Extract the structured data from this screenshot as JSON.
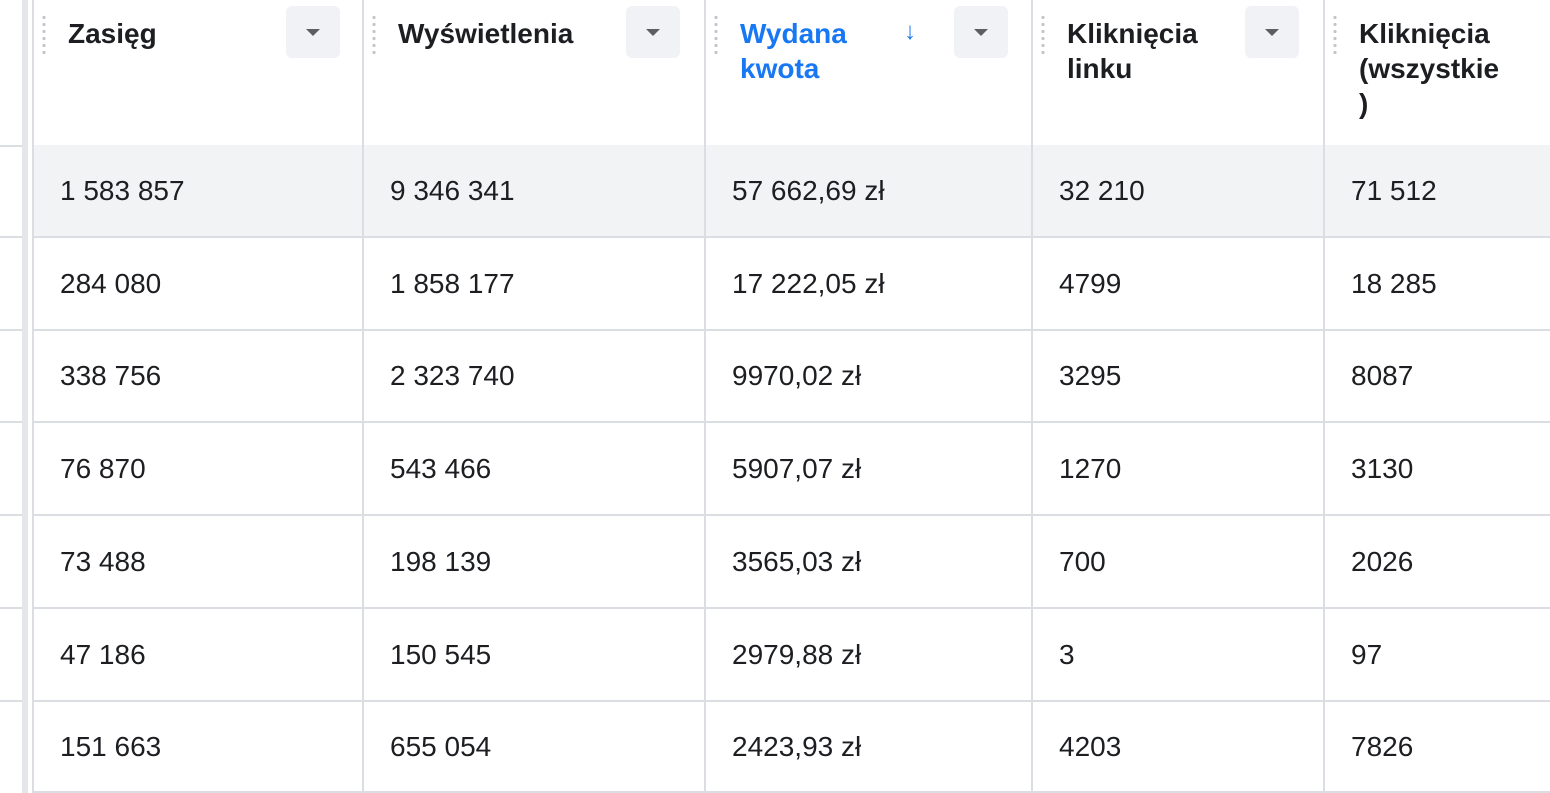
{
  "columns": [
    {
      "label": "Zasięg"
    },
    {
      "label": "Wyświetlenia"
    },
    {
      "label": "Wydana\nkwota",
      "sorted": true,
      "sort_icon": "arrow-down-icon"
    },
    {
      "label": "Kliknięcia\nlinku"
    },
    {
      "label": "Kliknięcia\n(wszystkie\n)"
    }
  ],
  "rows": [
    [
      "1 583 857",
      "9 346 341",
      "57 662,69 zł",
      "32 210",
      "71 512"
    ],
    [
      "284 080",
      "1 858 177",
      "17 222,05 zł",
      "4799",
      "18 285"
    ],
    [
      "338 756",
      "2 323 740",
      "9970,02 zł",
      "3295",
      "8087"
    ],
    [
      "76 870",
      "543 466",
      "5907,07 zł",
      "1270",
      "3130"
    ],
    [
      "73 488",
      "198 139",
      "3565,03 zł",
      "700",
      "2026"
    ],
    [
      "47 186",
      "150 545",
      "2979,88 zł",
      "3",
      "97"
    ],
    [
      "151 663",
      "655 054",
      "2423,93 zł",
      "4203",
      "7826"
    ]
  ],
  "colors": {
    "accent": "#1877f2",
    "highlight_row": "#f2f3f4",
    "grid": "#dadde1"
  }
}
